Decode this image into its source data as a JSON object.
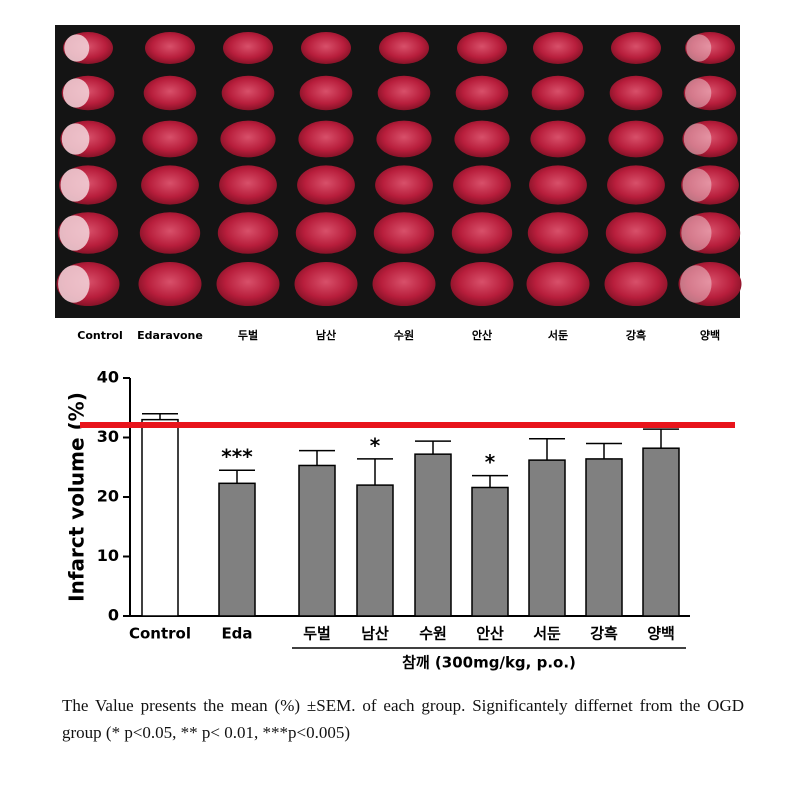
{
  "image_panel": {
    "labels": [
      "Control",
      "Edaravone",
      "두벌",
      "남산",
      "수원",
      "안산",
      "서둔",
      "강흑",
      "양백"
    ]
  },
  "chart_data": {
    "type": "bar",
    "y_label": "Infarct volume (%)",
    "categories": [
      "Control",
      "Eda",
      "두벌",
      "남산",
      "수원",
      "안산",
      "서둔",
      "강흑",
      "양백"
    ],
    "values": [
      33,
      22.3,
      25.3,
      22,
      27.2,
      21.6,
      26.2,
      26.4,
      28.2
    ],
    "errors": [
      1,
      2.2,
      2.5,
      4.4,
      2.2,
      2,
      3.6,
      2.6,
      3.2
    ],
    "colors": [
      "#ffffff",
      "#808080",
      "#808080",
      "#808080",
      "#808080",
      "#808080",
      "#808080",
      "#808080",
      "#808080"
    ],
    "significance": [
      "",
      "***",
      "",
      "*",
      "",
      "*",
      "",
      "",
      ""
    ],
    "group_label": "참깨 (300mg/kg, p.o.)",
    "reference_line": {
      "value": 32.1,
      "color": "#e8141b"
    },
    "ylim": [
      0,
      40
    ],
    "yticks": [
      0,
      10,
      20,
      30,
      40
    ]
  },
  "caption": "The Value presents the mean (%) ±SEM. of each group. Significantely differnet from the OGD group (* p<0.05, ** p< 0.01, ***p<0.005)"
}
